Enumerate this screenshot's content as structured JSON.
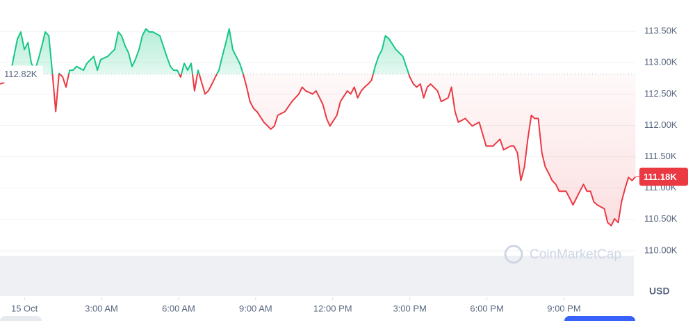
{
  "chart_data": {
    "type": "line",
    "x": [
      -0.95,
      -0.81,
      -0.54,
      -0.41,
      -0.27,
      -0.14,
      0,
      0.14,
      0.27,
      0.41,
      0.54,
      0.68,
      0.81,
      0.95,
      1.08,
      1.22,
      1.35,
      1.49,
      1.62,
      1.76,
      1.89,
      2.03,
      2.3,
      2.43,
      2.7,
      2.84,
      2.97,
      3.24,
      3.38,
      3.51,
      3.65,
      3.78,
      3.92,
      4.05,
      4.19,
      4.32,
      4.46,
      4.59,
      4.73,
      4.86,
      5.0,
      5.27,
      5.54,
      5.68,
      5.81,
      5.95,
      6.08,
      6.22,
      6.35,
      6.49,
      6.62,
      6.76,
      7.03,
      7.16,
      7.3,
      7.43,
      7.57,
      7.7,
      7.84,
      7.97,
      8.11,
      8.24,
      8.38,
      8.51,
      8.65,
      8.78,
      8.92,
      9.05,
      9.32,
      9.59,
      9.73,
      9.86,
      10.14,
      10.41,
      10.68,
      10.81,
      10.95,
      11.22,
      11.35,
      11.49,
      11.62,
      11.76,
      11.89,
      12.16,
      12.3,
      12.57,
      12.7,
      12.84,
      12.97,
      13.11,
      13.24,
      13.38,
      13.51,
      13.65,
      13.78,
      13.92,
      14.05,
      14.19,
      14.46,
      14.73,
      14.86,
      15.0,
      15.14,
      15.27,
      15.41,
      15.54,
      15.68,
      15.81,
      16.08,
      16.22,
      16.49,
      16.62,
      16.76,
      16.89,
      17.16,
      17.43,
      17.7,
      17.97,
      18.24,
      18.51,
      18.65,
      18.92,
      19.05,
      19.19,
      19.32,
      19.46,
      19.59,
      19.73,
      19.86,
      20.0,
      20.14,
      20.27,
      20.41,
      20.54,
      20.68,
      20.81,
      21.08,
      21.22,
      21.35,
      21.62,
      21.76,
      21.89,
      22.03,
      22.16,
      22.3,
      22.57,
      22.7,
      22.84,
      22.97,
      23.11,
      23.24,
      23.38,
      23.51,
      23.65,
      23.78
    ],
    "values": [
      112660,
      112680,
      112830,
      113100,
      113380,
      113490,
      113210,
      113320,
      112990,
      112880,
      113050,
      113270,
      113490,
      113430,
      112880,
      112220,
      112830,
      112770,
      112610,
      112880,
      112880,
      112940,
      112880,
      112990,
      113100,
      112880,
      113050,
      113100,
      113160,
      113210,
      113490,
      113430,
      113270,
      113160,
      112940,
      113050,
      113210,
      113430,
      113540,
      113490,
      113490,
      113430,
      113100,
      112940,
      112880,
      112880,
      112770,
      112990,
      112880,
      112990,
      112550,
      112880,
      112500,
      112550,
      112660,
      112770,
      112880,
      113100,
      113320,
      113540,
      113210,
      113100,
      112990,
      112830,
      112610,
      112380,
      112270,
      112220,
      112050,
      111940,
      111990,
      112160,
      112220,
      112380,
      112500,
      112610,
      112550,
      112500,
      112550,
      112440,
      112330,
      112110,
      111990,
      112160,
      112380,
      112550,
      112500,
      112610,
      112440,
      112550,
      112610,
      112660,
      112720,
      112940,
      113100,
      113210,
      113430,
      113380,
      113210,
      113100,
      112940,
      112770,
      112660,
      112610,
      112660,
      112440,
      112610,
      112660,
      112550,
      112380,
      112440,
      112610,
      112220,
      112050,
      112110,
      111990,
      112050,
      111670,
      111670,
      111780,
      111610,
      111670,
      111670,
      111560,
      111120,
      111340,
      111780,
      112160,
      112110,
      112110,
      111560,
      111340,
      111230,
      111120,
      111060,
      110950,
      110950,
      110840,
      110730,
      110950,
      111060,
      110950,
      110950,
      110780,
      110730,
      110670,
      110450,
      110400,
      110510,
      110450,
      110780,
      111000,
      111170,
      111120,
      111180
    ],
    "colors": {
      "up": "#16c784",
      "down": "#ea3943"
    },
    "baseline": {
      "value": 112820,
      "label": "112.82K"
    },
    "current": {
      "value": 111180,
      "label": "111.18K"
    },
    "xlim": [
      -0.95,
      23.8
    ],
    "xticks": [
      {
        "value": 0,
        "label": "15 Oct"
      },
      {
        "value": 3,
        "label": "3:00 AM"
      },
      {
        "value": 6,
        "label": "6:00 AM"
      },
      {
        "value": 9,
        "label": "9:00 AM"
      },
      {
        "value": 12,
        "label": "12:00 PM"
      },
      {
        "value": 15,
        "label": "3:00 PM"
      },
      {
        "value": 18,
        "label": "6:00 PM"
      },
      {
        "value": 21,
        "label": "9:00 PM"
      }
    ],
    "ylim": [
      109600,
      114000
    ],
    "yticks": [
      {
        "value": 110000,
        "label": "110.00K"
      },
      {
        "value": 110500,
        "label": "110.50K"
      },
      {
        "value": 111000,
        "label": "111.00K"
      },
      {
        "value": 111500,
        "label": "111.50K"
      },
      {
        "value": 112000,
        "label": "112.00K"
      },
      {
        "value": 112500,
        "label": "112.50K"
      },
      {
        "value": 113000,
        "label": "113.00K"
      },
      {
        "value": 113500,
        "label": "113.50K"
      }
    ],
    "grid": true,
    "currency": "USD",
    "watermark": "CoinMarketCap"
  }
}
